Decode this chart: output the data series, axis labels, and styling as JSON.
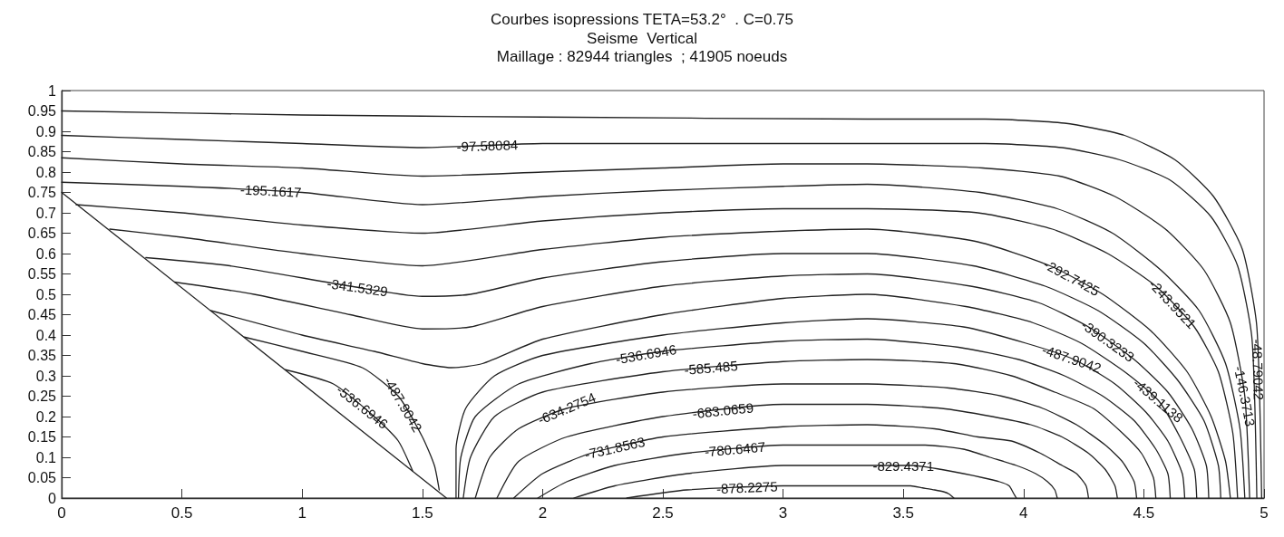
{
  "chart_data": {
    "type": "line",
    "title": "Courbes isopressions TETA=53.2°  . C=0.75",
    "subtitle": "Seisme  Vertical\nMaillage : 82944 triangles  ; 41905 noeuds",
    "xlim": [
      0,
      5
    ],
    "xticks": [
      0,
      0.5,
      1,
      1.5,
      2,
      2.5,
      3,
      3.5,
      4,
      4.5,
      5
    ],
    "ylim": [
      0,
      1
    ],
    "yticks": [
      0,
      0.05,
      0.1,
      0.15,
      0.2,
      0.25,
      0.3,
      0.35,
      0.4,
      0.45,
      0.5,
      0.55,
      0.6,
      0.65,
      0.7,
      0.75,
      0.8,
      0.85,
      0.9,
      0.95,
      1
    ],
    "grid": false,
    "marker": "none",
    "line_style": "solid",
    "series": [
      {
        "color": "#222222",
        "x": [
          0,
          1.6
        ],
        "values": [
          0.75,
          0
        ]
      },
      {
        "color": "#222222",
        "x": [
          0,
          1,
          2,
          3.35,
          3.84,
          4.17,
          4.42,
          4.63,
          4.79,
          4.91,
          4.97,
          4.99
        ],
        "values": [
          0.95,
          0.94,
          0.935,
          0.93,
          0.93,
          0.92,
          0.89,
          0.83,
          0.74,
          0.61,
          0.42,
          0
        ]
      },
      {
        "color": "#222222",
        "x": [
          0,
          0.5,
          1,
          1.5,
          2,
          3.35,
          3.84,
          4.16,
          4.4,
          4.61,
          4.78,
          4.89,
          4.95,
          4.97
        ],
        "values": [
          0.89,
          0.88,
          0.87,
          0.86,
          0.87,
          0.87,
          0.87,
          0.86,
          0.83,
          0.78,
          0.69,
          0.57,
          0.39,
          0
        ]
      },
      {
        "color": "#222222",
        "x": [
          0,
          0.5,
          1,
          1.5,
          2,
          2.5,
          3,
          3.35,
          3.83,
          4.15,
          4.38,
          4.59,
          4.75,
          4.86,
          4.92,
          4.94
        ],
        "values": [
          0.835,
          0.82,
          0.81,
          0.79,
          0.8,
          0.81,
          0.82,
          0.82,
          0.81,
          0.79,
          0.74,
          0.66,
          0.56,
          0.43,
          0.25,
          0
        ]
      },
      {
        "color": "#222222",
        "x": [
          0,
          0.5,
          1,
          1.5,
          2,
          2.5,
          3,
          3.35,
          3.82,
          4.14,
          4.37,
          4.57,
          4.73,
          4.84,
          4.9,
          4.92
        ],
        "values": [
          0.775,
          0.765,
          0.75,
          0.72,
          0.74,
          0.755,
          0.765,
          0.77,
          0.75,
          0.71,
          0.65,
          0.56,
          0.46,
          0.33,
          0.17,
          0
        ]
      },
      {
        "color": "#222222",
        "x": [
          0.06,
          0.5,
          1,
          1.5,
          2,
          2.5,
          3,
          3.35,
          3.81,
          4.12,
          4.35,
          4.55,
          4.71,
          4.81,
          4.87,
          4.89
        ],
        "values": [
          0.72,
          0.7,
          0.67,
          0.65,
          0.68,
          0.7,
          0.71,
          0.71,
          0.7,
          0.66,
          0.6,
          0.52,
          0.42,
          0.31,
          0.16,
          0
        ]
      },
      {
        "color": "#222222",
        "x": [
          0.2,
          0.5,
          1,
          1.5,
          2,
          2.5,
          3,
          3.35,
          3.8,
          4.11,
          4.33,
          4.53,
          4.68,
          4.78,
          4.84,
          4.86
        ],
        "values": [
          0.66,
          0.64,
          0.6,
          0.57,
          0.61,
          0.64,
          0.655,
          0.66,
          0.63,
          0.57,
          0.5,
          0.41,
          0.31,
          0.2,
          0.09,
          0
        ]
      },
      {
        "color": "#222222",
        "x": [
          0.35,
          0.7,
          1.2,
          1.5,
          1.7,
          2,
          2.5,
          3,
          3.35,
          3.79,
          4.09,
          4.31,
          4.5,
          4.64,
          4.75,
          4.81,
          4.82
        ],
        "values": [
          0.59,
          0.57,
          0.52,
          0.495,
          0.5,
          0.54,
          0.58,
          0.6,
          0.6,
          0.57,
          0.52,
          0.46,
          0.38,
          0.29,
          0.19,
          0.08,
          0
        ]
      },
      {
        "color": "#222222",
        "x": [
          0.47,
          0.8,
          1.2,
          1.5,
          1.7,
          2,
          2.5,
          3,
          3.35,
          3.78,
          4.06,
          4.27,
          4.46,
          4.6,
          4.7,
          4.76,
          4.77
        ],
        "values": [
          0.53,
          0.5,
          0.45,
          0.415,
          0.42,
          0.47,
          0.52,
          0.545,
          0.55,
          0.52,
          0.48,
          0.42,
          0.34,
          0.26,
          0.17,
          0.08,
          0
        ]
      },
      {
        "color": "#222222",
        "x": [
          0.62,
          1,
          1.3,
          1.5,
          1.62,
          1.75,
          2,
          2.5,
          3,
          3.35,
          3.76,
          4.04,
          4.24,
          4.42,
          4.56,
          4.65,
          4.71,
          4.72
        ],
        "values": [
          0.46,
          0.4,
          0.36,
          0.33,
          0.32,
          0.33,
          0.39,
          0.45,
          0.49,
          0.5,
          0.47,
          0.43,
          0.38,
          0.31,
          0.24,
          0.15,
          0.07,
          0
        ]
      },
      {
        "color": "#222222",
        "x": [
          0.76,
          1,
          1.25,
          1.4,
          1.5,
          1.55,
          1.57,
          1.6,
          1.64,
          1.64,
          1.68,
          1.8,
          2,
          2.5,
          3,
          3.35,
          3.75,
          4.01,
          4.21,
          4.38,
          4.51,
          4.6,
          4.66,
          4.67
        ],
        "values": [
          0.395,
          0.36,
          0.32,
          0.25,
          0.15,
          0.08,
          0.02,
          null,
          0,
          0.12,
          0.22,
          0.3,
          0.35,
          0.4,
          0.43,
          0.44,
          0.42,
          0.38,
          0.34,
          0.28,
          0.21,
          0.14,
          0.06,
          0
        ]
      },
      {
        "color": "#222222",
        "x": [
          0.93,
          1.13,
          1.3,
          1.4,
          1.46,
          1.55,
          1.65,
          1.66,
          1.72,
          1.9,
          2.2,
          2.5,
          3,
          3.35,
          3.73,
          3.98,
          4.17,
          4.33,
          4.46,
          4.55,
          4.6,
          4.61
        ],
        "values": [
          0.315,
          0.28,
          0.2,
          0.14,
          0.066,
          null,
          0,
          0.1,
          0.2,
          0.28,
          0.33,
          0.36,
          0.385,
          0.39,
          0.37,
          0.34,
          0.3,
          0.25,
          0.19,
          0.12,
          0.06,
          0
        ]
      },
      {
        "color": "#222222",
        "x": [
          1.67,
          1.7,
          1.8,
          2,
          2.5,
          3,
          3.35,
          3.71,
          3.95,
          4.13,
          4.29,
          4.41,
          4.49,
          4.54,
          4.55
        ],
        "values": [
          0,
          0.1,
          0.2,
          0.26,
          0.31,
          0.335,
          0.34,
          0.33,
          0.3,
          0.26,
          0.22,
          0.16,
          0.11,
          0.05,
          0
        ]
      },
      {
        "color": "#222222",
        "x": [
          1.72,
          1.78,
          1.9,
          2.1,
          2.5,
          3,
          3.35,
          3.69,
          3.91,
          4.08,
          4.22,
          4.34,
          4.41,
          4.46,
          4.47
        ],
        "values": [
          0,
          0.1,
          0.17,
          0.22,
          0.26,
          0.28,
          0.28,
          0.27,
          0.25,
          0.22,
          0.18,
          0.13,
          0.09,
          0.04,
          0
        ]
      },
      {
        "color": "#222222",
        "x": [
          1.81,
          1.9,
          2.1,
          2.5,
          3,
          3.35,
          3.66,
          3.87,
          4.03,
          4.16,
          4.27,
          4.34,
          4.38,
          4.39
        ],
        "values": [
          0,
          0.09,
          0.15,
          0.2,
          0.23,
          0.23,
          0.22,
          0.2,
          0.18,
          0.15,
          0.11,
          0.07,
          0.03,
          0
        ]
      },
      {
        "color": "#222222",
        "x": [
          1.88,
          2,
          2.2,
          2.5,
          3,
          3.35,
          3.63,
          3.81,
          3.95,
          4.07,
          4.16,
          4.22,
          4.26,
          4.27
        ],
        "values": [
          0,
          0.06,
          0.11,
          0.15,
          0.175,
          0.18,
          0.17,
          0.15,
          0.14,
          0.11,
          0.08,
          0.06,
          0.03,
          0
        ]
      },
      {
        "color": "#222222",
        "x": [
          1.98,
          2.1,
          2.3,
          2.6,
          3,
          3.35,
          3.59,
          3.75,
          3.86,
          3.97,
          4.05,
          4.1,
          4.13,
          4.14
        ],
        "values": [
          0,
          0.04,
          0.08,
          0.11,
          0.13,
          0.13,
          0.13,
          0.12,
          0.1,
          0.08,
          0.06,
          0.04,
          0.02,
          0
        ]
      },
      {
        "color": "#222222",
        "x": [
          2.13,
          2.3,
          2.6,
          3,
          3.35,
          3.54,
          3.66,
          3.75,
          3.83,
          3.9,
          3.94,
          3.96,
          3.97
        ],
        "values": [
          0,
          0.03,
          0.06,
          0.08,
          0.08,
          0.08,
          0.07,
          0.06,
          0.05,
          0.04,
          0.03,
          0.01,
          0
        ]
      },
      {
        "color": "#222222",
        "x": [
          2.35,
          2.6,
          3,
          3.35,
          3.46,
          3.53,
          3.58,
          3.63,
          3.67,
          3.69,
          3.71
        ],
        "values": [
          0,
          0.02,
          0.03,
          0.03,
          0.03,
          0.03,
          0.025,
          0.02,
          0.015,
          0.01,
          0
        ]
      }
    ],
    "annotations": [
      {
        "text": "-97.58084",
        "x": 1.77,
        "y": 0.865
      },
      {
        "text": "-195.1617",
        "x": 0.87,
        "y": 0.754
      },
      {
        "text": "-341.5329",
        "x": 1.23,
        "y": 0.517
      },
      {
        "text": "-487.9042",
        "x": 1.42,
        "y": 0.23
      },
      {
        "text": "-536.6946",
        "x": 1.25,
        "y": 0.224
      },
      {
        "text": "-536.6946",
        "x": 2.43,
        "y": 0.353
      },
      {
        "text": "-585.485",
        "x": 2.7,
        "y": 0.32
      },
      {
        "text": "-634.2754",
        "x": 2.1,
        "y": 0.22
      },
      {
        "text": "-683.0659",
        "x": 2.75,
        "y": 0.215
      },
      {
        "text": "-731.8563",
        "x": 2.3,
        "y": 0.123
      },
      {
        "text": "-780.6467",
        "x": 2.8,
        "y": 0.12
      },
      {
        "text": "-829.4371",
        "x": 3.5,
        "y": 0.08
      },
      {
        "text": "-878.2275",
        "x": 2.85,
        "y": 0.026
      },
      {
        "text": "-292.7425",
        "x": 4.2,
        "y": 0.541
      },
      {
        "text": "-487.9042",
        "x": 4.2,
        "y": 0.342
      },
      {
        "text": "-390.3233",
        "x": 4.35,
        "y": 0.386
      },
      {
        "text": "-439.1138",
        "x": 4.56,
        "y": 0.24
      },
      {
        "text": "-243.9521",
        "x": 4.62,
        "y": 0.476
      },
      {
        "text": "-146.3713",
        "x": 4.92,
        "y": 0.25
      },
      {
        "text": "-48.79042",
        "x": 4.975,
        "y": 0.315
      }
    ]
  }
}
